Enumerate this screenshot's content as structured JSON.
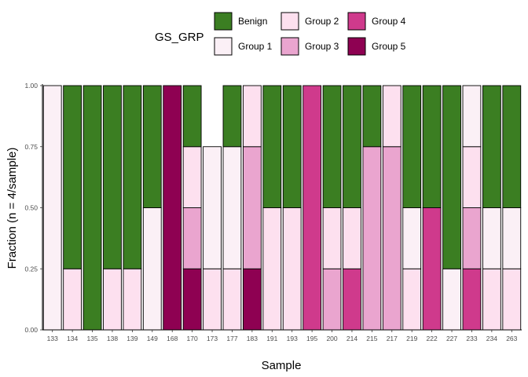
{
  "chart_data": {
    "type": "bar",
    "stacked": true,
    "title": "",
    "xlabel": "Sample",
    "ylabel": "Fraction (n = 4/sample)",
    "ylim": [
      0,
      1
    ],
    "yticks": [
      "0.00",
      "0.25",
      "0.50",
      "0.75",
      "1.00"
    ],
    "yticks_values": [
      0,
      0.25,
      0.5,
      0.75,
      1.0
    ],
    "legend": {
      "title": "GS_GRP",
      "placement": "top"
    },
    "categories": [
      "133",
      "134",
      "135",
      "138",
      "139",
      "149",
      "168",
      "170",
      "173",
      "177",
      "183",
      "191",
      "193",
      "195",
      "200",
      "214",
      "215",
      "217",
      "219",
      "222",
      "227",
      "233",
      "234",
      "263"
    ],
    "series": [
      {
        "name": "Benign",
        "color": "#3b7e22",
        "values": [
          0,
          0.75,
          1,
          0.75,
          0.75,
          0.5,
          0,
          0.25,
          0,
          0.25,
          0,
          0.5,
          0.5,
          0,
          0.5,
          0.5,
          0.25,
          0,
          0.5,
          0.5,
          0.75,
          0,
          0.5,
          0.5
        ]
      },
      {
        "name": "Group 1",
        "color": "#fbf0f6",
        "values": [
          1,
          0,
          0,
          0,
          0,
          0.5,
          0,
          0,
          0.5,
          0.5,
          0,
          0,
          0,
          0,
          0,
          0,
          0,
          0,
          0.25,
          0,
          0.25,
          0.25,
          0.25,
          0.25
        ]
      },
      {
        "name": "Group 2",
        "color": "#fde0ef",
        "values": [
          0,
          0.25,
          0,
          0.25,
          0.25,
          0,
          0,
          0.25,
          0.25,
          0.25,
          0.25,
          0.5,
          0.5,
          0,
          0.25,
          0.25,
          0,
          0.25,
          0.25,
          0,
          0,
          0.25,
          0.25,
          0.25
        ]
      },
      {
        "name": "Group 3",
        "color": "#eaa5cf",
        "values": [
          0,
          0,
          0,
          0,
          0,
          0,
          0,
          0.25,
          0,
          0,
          0.5,
          0,
          0,
          0,
          0.25,
          0,
          0.75,
          0.75,
          0,
          0,
          0,
          0.25,
          0,
          0
        ]
      },
      {
        "name": "Group 4",
        "color": "#cf3a8c",
        "values": [
          0,
          0,
          0,
          0,
          0,
          0,
          0,
          0,
          0,
          0,
          0,
          0,
          0,
          1,
          0,
          0.25,
          0,
          0,
          0,
          0.5,
          0,
          0.25,
          0,
          0
        ]
      },
      {
        "name": "Group 5",
        "color": "#8e0152",
        "values": [
          0,
          0,
          0,
          0,
          0,
          0,
          1,
          0.25,
          0,
          0,
          0.25,
          0,
          0,
          0,
          0,
          0,
          0,
          0,
          0,
          0,
          0,
          0,
          0,
          0
        ]
      }
    ],
    "stack_order_bottom_to_top": [
      "Group 5",
      "Group 4",
      "Group 3",
      "Group 2",
      "Group 1",
      "Benign"
    ],
    "grid": false
  }
}
